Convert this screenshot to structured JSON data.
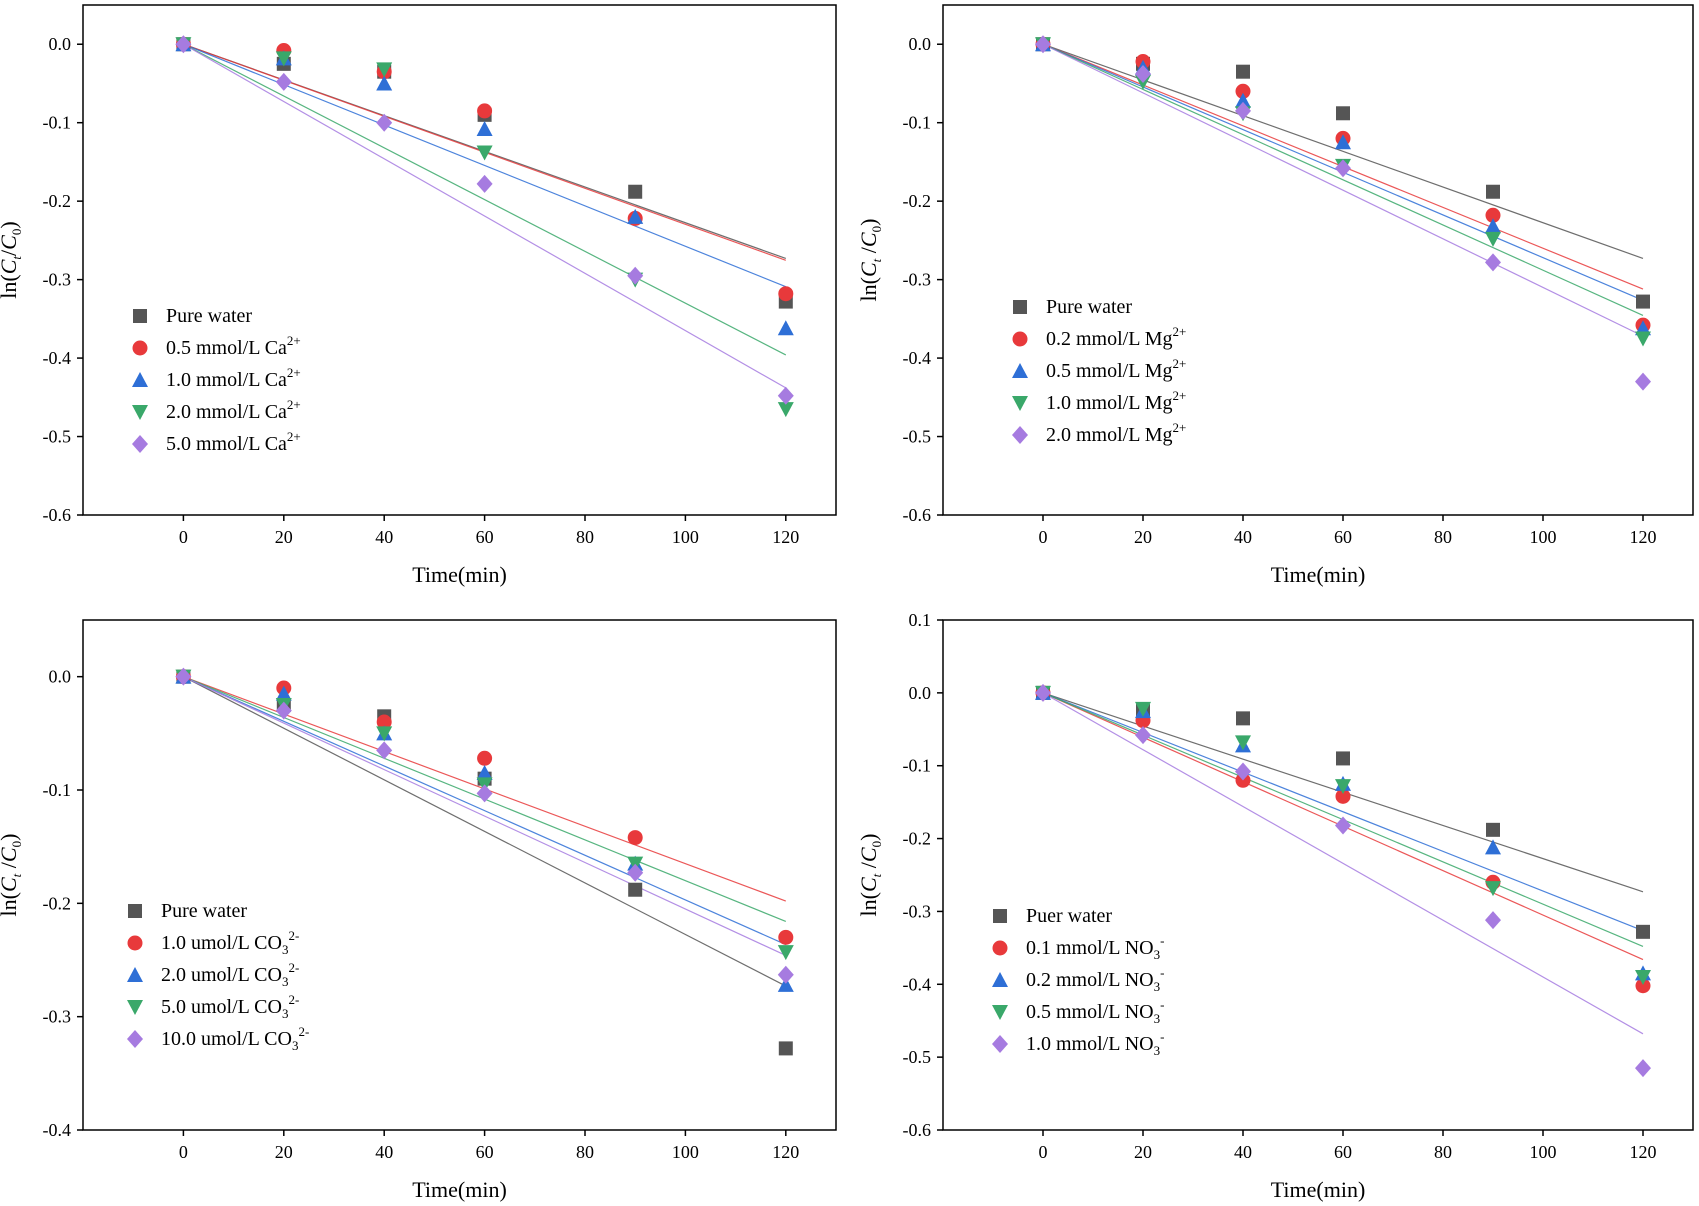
{
  "chart_data": [
    {
      "type": "scatter",
      "panel": "top-left",
      "xlabel": "Time(min)",
      "ylabel": {
        "base": "ln(",
        "c1": "C",
        "s1": "t",
        "sep": "/",
        "c2": "C",
        "s2": "0",
        "end": ")"
      },
      "xlim": [
        -20,
        130
      ],
      "ylim": [
        -0.6,
        0.05
      ],
      "xticks": [
        0,
        20,
        40,
        60,
        80,
        100,
        120
      ],
      "xtick_labels": [
        "0",
        "20",
        "40",
        "60",
        "80",
        "100",
        "120"
      ],
      "yticks": [
        0.0,
        -0.1,
        -0.2,
        -0.3,
        -0.4,
        -0.5,
        -0.6
      ],
      "ytick_labels": [
        "0.0",
        "-0.1",
        "-0.2",
        "-0.3",
        "-0.4",
        "-0.5",
        "-0.6"
      ],
      "x": [
        0,
        20,
        40,
        60,
        90,
        120
      ],
      "legend_position": "lower-left",
      "series": [
        {
          "name": "Pure water",
          "base": "Pure water",
          "sup": "",
          "sub": "",
          "marker": "square",
          "color": "#555555",
          "values": [
            0,
            -0.025,
            -0.035,
            -0.09,
            -0.188,
            -0.328
          ],
          "slope": -0.002275
        },
        {
          "name": "0.5 mmol/L Ca2+",
          "base": "0.5 mmol/L Ca",
          "sup": "2+",
          "sub": "",
          "marker": "circle",
          "color": "#e8393b",
          "values": [
            0,
            -0.008,
            -0.035,
            -0.085,
            -0.222,
            -0.318
          ],
          "slope": -0.002295
        },
        {
          "name": "1.0 mmol/L Ca2+",
          "base": "1.0 mmol/L Ca",
          "sup": "2+",
          "sub": "",
          "marker": "triangle-up",
          "color": "#2e6fd6",
          "values": [
            0,
            -0.018,
            -0.05,
            -0.108,
            -0.22,
            -0.362
          ],
          "slope": -0.002575
        },
        {
          "name": "2.0 mmol/L Ca2+",
          "base": "2.0 mmol/L Ca",
          "sup": "2+",
          "sub": "",
          "marker": "triangle-down",
          "color": "#3aa86a",
          "values": [
            0,
            -0.018,
            -0.032,
            -0.138,
            -0.3,
            -0.465
          ],
          "slope": -0.0033
        },
        {
          "name": "5.0 mmol/L Ca2+",
          "base": "5.0 mmol/L Ca",
          "sup": "2+",
          "sub": "",
          "marker": "diamond",
          "color": "#a67be0",
          "values": [
            0,
            -0.048,
            -0.1,
            -0.178,
            -0.295,
            -0.448
          ],
          "slope": -0.00365
        }
      ]
    },
    {
      "type": "scatter",
      "panel": "top-right",
      "xlabel": "Time(min)",
      "ylabel": {
        "base": "ln(",
        "c1": "C",
        "s1": "t",
        "sep": " /",
        "c2": "C",
        "s2": "0",
        "end": ")"
      },
      "xlim": [
        -20,
        130
      ],
      "ylim": [
        -0.6,
        0.05
      ],
      "xticks": [
        0,
        20,
        40,
        60,
        80,
        100,
        120
      ],
      "xtick_labels": [
        "0",
        "20",
        "40",
        "60",
        "80",
        "100",
        "120"
      ],
      "yticks": [
        0.0,
        -0.1,
        -0.2,
        -0.3,
        -0.4,
        -0.5,
        -0.6
      ],
      "ytick_labels": [
        "0.0",
        "-0.1",
        "-0.2",
        "-0.3",
        "-0.4",
        "-0.5",
        "-0.6"
      ],
      "x": [
        0,
        20,
        40,
        60,
        90,
        120
      ],
      "legend_position": "lower-left",
      "series": [
        {
          "name": "Pure water",
          "base": "Pure water",
          "sup": "",
          "sub": "",
          "marker": "square",
          "color": "#555555",
          "values": [
            0,
            -0.025,
            -0.035,
            -0.088,
            -0.188,
            -0.328
          ],
          "slope": -0.002275
        },
        {
          "name": "0.2 mmol/L Mg2+",
          "base": "0.2 mmol/L Mg",
          "sup": "2+",
          "sub": "",
          "marker": "circle",
          "color": "#e8393b",
          "values": [
            0,
            -0.022,
            -0.06,
            -0.12,
            -0.218,
            -0.358
          ],
          "slope": -0.0026
        },
        {
          "name": "0.5 mmol/L Mg2+",
          "base": "0.5 mmol/L Mg",
          "sup": "2+",
          "sub": "",
          "marker": "triangle-up",
          "color": "#2e6fd6",
          "values": [
            0,
            -0.03,
            -0.072,
            -0.125,
            -0.232,
            -0.362
          ],
          "slope": -0.00272
        },
        {
          "name": "1.0 mmol/L Mg2+",
          "base": "1.0 mmol/L Mg",
          "sup": "2+",
          "sub": "",
          "marker": "triangle-down",
          "color": "#3aa86a",
          "values": [
            0,
            -0.048,
            -0.088,
            -0.155,
            -0.248,
            -0.375
          ],
          "slope": -0.00288
        },
        {
          "name": "2.0 mmol/L Mg2+",
          "base": "2.0 mmol/L Mg",
          "sup": "2+",
          "sub": "",
          "marker": "diamond",
          "color": "#a67be0",
          "values": [
            0,
            -0.038,
            -0.085,
            -0.158,
            -0.278,
            -0.43
          ],
          "slope": -0.0031
        }
      ]
    },
    {
      "type": "scatter",
      "panel": "bottom-left",
      "xlabel": "Time(min)",
      "ylabel": {
        "base": "ln(",
        "c1": "C",
        "s1": "t",
        "sep": " /",
        "c2": "C",
        "s2": "0",
        "end": ")"
      },
      "xlim": [
        -20,
        130
      ],
      "ylim": [
        -0.4,
        0.05
      ],
      "xticks": [
        0,
        20,
        40,
        60,
        80,
        100,
        120
      ],
      "xtick_labels": [
        "0",
        "20",
        "40",
        "60",
        "80",
        "100",
        "120"
      ],
      "yticks": [
        0.0,
        -0.1,
        -0.2,
        -0.3,
        -0.4
      ],
      "ytick_labels": [
        "0.0",
        "-0.1",
        "-0.2",
        "-0.3",
        "-0.4"
      ],
      "x": [
        0,
        20,
        40,
        60,
        90,
        120
      ],
      "legend_position": "lower-left",
      "series": [
        {
          "name": "Pure water",
          "base": "Pure water",
          "sup": "",
          "sub": "",
          "marker": "square",
          "color": "#555555",
          "values": [
            0,
            -0.025,
            -0.035,
            -0.09,
            -0.188,
            -0.328
          ],
          "slope": -0.002275
        },
        {
          "name": "1.0 umol/L CO32-",
          "base": "1.0 umol/L CO",
          "sup": "2-",
          "sub": "3",
          "marker": "circle",
          "color": "#e8393b",
          "values": [
            0,
            -0.01,
            -0.04,
            -0.072,
            -0.142,
            -0.23
          ],
          "slope": -0.00165
        },
        {
          "name": "2.0 umol/L CO32-",
          "base": "2.0 umol/L CO",
          "sup": "2-",
          "sub": "3",
          "marker": "triangle-up",
          "color": "#2e6fd6",
          "values": [
            0,
            -0.015,
            -0.05,
            -0.085,
            -0.165,
            -0.272
          ],
          "slope": -0.00197
        },
        {
          "name": "5.0 umol/L CO32-",
          "base": "5.0 umol/L CO",
          "sup": "2-",
          "sub": "3",
          "marker": "triangle-down",
          "color": "#3aa86a",
          "values": [
            0,
            -0.025,
            -0.05,
            -0.095,
            -0.165,
            -0.243
          ],
          "slope": -0.0018
        },
        {
          "name": "10.0 umol/L CO32-",
          "base": "10.0 umol/L CO",
          "sup": "2-",
          "sub": "3",
          "marker": "diamond",
          "color": "#a67be0",
          "values": [
            0,
            -0.03,
            -0.065,
            -0.103,
            -0.173,
            -0.263
          ],
          "slope": -0.00205
        }
      ]
    },
    {
      "type": "scatter",
      "panel": "bottom-right",
      "xlabel": "Time(min)",
      "ylabel": {
        "base": "ln(",
        "c1": "C",
        "s1": "t",
        "sep": " /",
        "c2": "C",
        "s2": "0",
        "end": ")"
      },
      "xlim": [
        -20,
        130
      ],
      "ylim": [
        -0.6,
        0.1
      ],
      "xticks": [
        0,
        20,
        40,
        60,
        80,
        100,
        120
      ],
      "xtick_labels": [
        "0",
        "20",
        "40",
        "60",
        "80",
        "100",
        "120"
      ],
      "yticks": [
        0.1,
        0.0,
        -0.1,
        -0.2,
        -0.3,
        -0.4,
        -0.5,
        -0.6
      ],
      "ytick_labels": [
        "0.1",
        "0.0",
        "-0.1",
        "-0.2",
        "-0.3",
        "-0.4",
        "-0.5",
        "-0.6"
      ],
      "x": [
        0,
        20,
        40,
        60,
        90,
        120
      ],
      "legend_position": "lower-left",
      "series": [
        {
          "name": "Puer water",
          "base": "Puer water",
          "sup": "",
          "sub": "",
          "marker": "square",
          "color": "#555555",
          "values": [
            0,
            -0.025,
            -0.035,
            -0.09,
            -0.188,
            -0.328
          ],
          "slope": -0.002275
        },
        {
          "name": "0.1 mmol/L NO3-",
          "base": "0.1 mmol/L NO",
          "sup": "-",
          "sub": "3",
          "marker": "circle",
          "color": "#e8393b",
          "values": [
            0,
            -0.038,
            -0.12,
            -0.142,
            -0.26,
            -0.402
          ],
          "slope": -0.00305
        },
        {
          "name": "0.2 mmol/L NO3-",
          "base": "0.2 mmol/L NO",
          "sup": "-",
          "sub": "3",
          "marker": "triangle-up",
          "color": "#2e6fd6",
          "values": [
            0,
            -0.025,
            -0.072,
            -0.125,
            -0.212,
            -0.385
          ],
          "slope": -0.00272
        },
        {
          "name": "0.5 mmol/L NO3-",
          "base": "0.5 mmol/L NO",
          "sup": "-",
          "sub": "3",
          "marker": "triangle-down",
          "color": "#3aa86a",
          "values": [
            0,
            -0.022,
            -0.068,
            -0.128,
            -0.268,
            -0.39
          ],
          "slope": -0.0029
        },
        {
          "name": "1.0 mmol/L NO3-",
          "base": "1.0 mmol/L NO",
          "sup": "-",
          "sub": "3",
          "marker": "diamond",
          "color": "#a67be0",
          "values": [
            0,
            -0.058,
            -0.108,
            -0.182,
            -0.312,
            -0.515
          ],
          "slope": -0.0039
        }
      ]
    }
  ]
}
